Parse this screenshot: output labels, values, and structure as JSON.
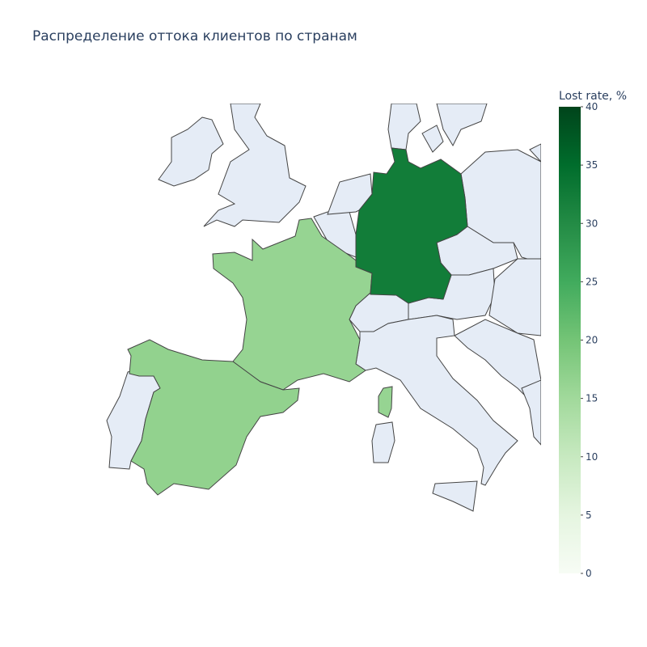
{
  "chart_data": {
    "type": "choropleth",
    "title": "Распределение оттока клиентов по странам",
    "values": [
      16.2,
      32.4,
      16.7
    ],
    "colorbar_title": "Lost rate, %",
    "zlim": [
      0,
      40
    ],
    "zticks": [
      0,
      5,
      10,
      15,
      20,
      25,
      30,
      35,
      40
    ],
    "colorscale": [
      [
        0,
        "#f7fcf5"
      ],
      [
        0.125,
        "#e5f5e0"
      ],
      [
        0.25,
        "#c7e9c0"
      ],
      [
        0.375,
        "#a1d99b"
      ],
      [
        0.5,
        "#74c476"
      ],
      [
        0.625,
        "#41ab5d"
      ],
      [
        0.75,
        "#238b45"
      ],
      [
        0.875,
        "#006d2c"
      ],
      [
        1,
        "#00441b"
      ]
    ]
  }
}
